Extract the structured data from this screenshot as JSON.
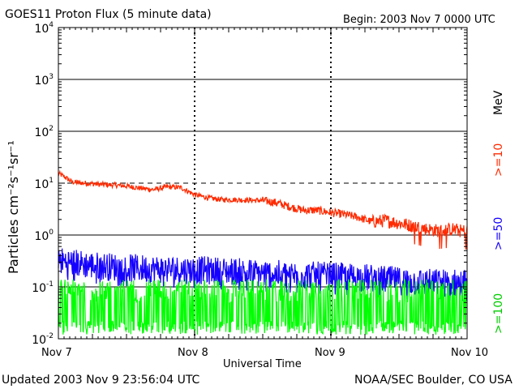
{
  "chart_data": {
    "type": "line",
    "title": "GOES11 Proton Flux (5 minute data)",
    "begin_label": "Begin: 2003 Nov 7 0000 UTC",
    "xlabel": "Universal Time",
    "ylabel": "Particles cm⁻²s⁻¹sr⁻¹",
    "y_scale": "log",
    "ylim": [
      0.01,
      10000
    ],
    "x_range_days": [
      0,
      3
    ],
    "x_tick_labels": [
      "Nov 7",
      "Nov 8",
      "Nov 9",
      "Nov 10"
    ],
    "y_tick_labels": [
      {
        "base": "10",
        "exp": "-2",
        "value": 0.01
      },
      {
        "base": "10",
        "exp": "-1",
        "value": 0.1
      },
      {
        "base": "10",
        "exp": "0",
        "value": 1
      },
      {
        "base": "10",
        "exp": "1",
        "value": 10
      },
      {
        "base": "10",
        "exp": "2",
        "value": 100
      },
      {
        "base": "10",
        "exp": "3",
        "value": 1000
      },
      {
        "base": "10",
        "exp": "4",
        "value": 10000
      }
    ],
    "solid_reference_lines": [
      0.1,
      1,
      100,
      1000
    ],
    "dashed_reference_lines": [
      10
    ],
    "units_label": "MeV",
    "series": [
      {
        "name": ">=10",
        "color": "#ff2a00",
        "x": [
          0.0,
          0.05,
          0.1,
          0.2,
          0.3,
          0.4,
          0.5,
          0.6,
          0.7,
          0.8,
          0.9,
          0.95,
          1.0,
          1.1,
          1.2,
          1.3,
          1.4,
          1.5,
          1.6,
          1.7,
          1.8,
          1.9,
          2.0,
          2.1,
          2.2,
          2.3,
          2.4,
          2.5,
          2.6,
          2.7,
          2.8,
          2.9,
          2.95,
          3.0
        ],
        "values": [
          15.5,
          13.0,
          10.5,
          10.0,
          9.5,
          9.2,
          8.8,
          8.0,
          7.5,
          8.5,
          8.2,
          7.0,
          6.0,
          5.2,
          4.8,
          4.8,
          4.7,
          4.6,
          4.2,
          3.5,
          3.0,
          3.0,
          2.7,
          2.5,
          2.2,
          1.8,
          1.9,
          1.7,
          1.5,
          1.3,
          1.2,
          1.3,
          1.2,
          1.2
        ]
      },
      {
        "name": ">=50",
        "color": "#1400ff",
        "x": [
          0.0,
          0.25,
          0.5,
          0.75,
          1.0,
          1.25,
          1.5,
          1.75,
          2.0,
          2.25,
          2.5,
          2.75,
          3.0
        ],
        "values": [
          0.32,
          0.26,
          0.23,
          0.22,
          0.21,
          0.2,
          0.18,
          0.17,
          0.16,
          0.15,
          0.13,
          0.12,
          0.12
        ]
      },
      {
        "name": ">=100",
        "color": "#00ff00",
        "x": [
          0.0,
          1.0,
          2.0,
          3.0
        ],
        "values": [
          0.035,
          0.035,
          0.035,
          0.035
        ]
      }
    ]
  },
  "footer": {
    "updated": "Updated 2003 Nov  9 23:56:04 UTC",
    "org": "NOAA/SEC Boulder, CO USA"
  }
}
